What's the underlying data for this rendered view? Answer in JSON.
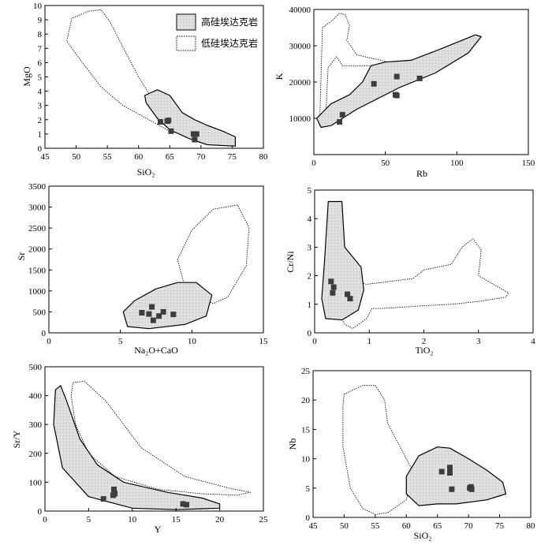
{
  "legend": {
    "high_si": {
      "label": "高硅埃达克岩"
    },
    "low_si": {
      "label": "低硅埃达克岩"
    }
  },
  "chart_data": [
    {
      "id": "mgo_sio2",
      "type": "scatter",
      "xlabel": "SiO₂",
      "ylabel": "MgO",
      "xlim": [
        45,
        80
      ],
      "ylim": [
        0,
        10
      ],
      "xticks": [
        45,
        50,
        55,
        60,
        65,
        70,
        75,
        80
      ],
      "yticks": [
        0,
        1,
        2,
        3,
        4,
        5,
        6,
        7,
        8,
        9,
        10
      ],
      "points": [
        [
          63.5,
          1.85
        ],
        [
          64.6,
          1.9
        ],
        [
          64.8,
          1.95
        ],
        [
          65.2,
          1.2
        ],
        [
          68.8,
          1.0
        ],
        [
          69.3,
          1.0
        ],
        [
          69.0,
          0.6
        ]
      ],
      "high_si_field": [
        [
          61,
          3.7
        ],
        [
          63,
          4.1
        ],
        [
          65,
          3.7
        ],
        [
          67,
          2.5
        ],
        [
          69,
          2.0
        ],
        [
          71,
          1.6
        ],
        [
          73.5,
          1.2
        ],
        [
          75.5,
          0.8
        ],
        [
          75.5,
          0.15
        ],
        [
          71,
          0.25
        ],
        [
          68,
          0.7
        ],
        [
          65,
          1.3
        ],
        [
          63,
          2.1
        ],
        [
          61.2,
          3.2
        ]
      ],
      "low_si_field": [
        [
          52,
          9.6
        ],
        [
          54,
          9.7
        ],
        [
          55.5,
          8.8
        ],
        [
          57,
          7.5
        ],
        [
          60,
          5.0
        ],
        [
          62,
          3.6
        ],
        [
          69,
          1.9
        ],
        [
          71.5,
          1.0
        ],
        [
          70.5,
          0.6
        ],
        [
          65,
          1.2
        ],
        [
          57.5,
          3.0
        ],
        [
          54,
          4.3
        ],
        [
          51,
          6.0
        ],
        [
          48.5,
          7.5
        ],
        [
          49.3,
          9.1
        ]
      ]
    },
    {
      "id": "k_rb",
      "type": "scatter",
      "xlabel": "Rb",
      "ylabel": "K",
      "xlim": [
        0,
        150
      ],
      "ylim": [
        0,
        40000
      ],
      "xticks": [
        0,
        50,
        100,
        150
      ],
      "yticks": [
        10000,
        20000,
        30000,
        40000
      ],
      "points": [
        [
          18,
          9000
        ],
        [
          20,
          11000
        ],
        [
          42,
          19500
        ],
        [
          57,
          16500
        ],
        [
          58,
          16300
        ],
        [
          58,
          21500
        ],
        [
          74,
          21000
        ]
      ],
      "high_si_field": [
        [
          2,
          10000
        ],
        [
          5,
          7500
        ],
        [
          12,
          8000
        ],
        [
          30,
          12500
        ],
        [
          60,
          18500
        ],
        [
          85,
          22500
        ],
        [
          108,
          28000
        ],
        [
          117,
          32500
        ],
        [
          113,
          33000
        ],
        [
          88,
          29000
        ],
        [
          68,
          26000
        ],
        [
          50,
          25500
        ],
        [
          40,
          24500
        ],
        [
          34,
          20000
        ],
        [
          25,
          16500
        ],
        [
          12,
          14000
        ]
      ],
      "low_si_field": [
        [
          4,
          8000
        ],
        [
          6,
          35000
        ],
        [
          13,
          37000
        ],
        [
          18,
          39000
        ],
        [
          22,
          38500
        ],
        [
          25,
          35500
        ],
        [
          23,
          31500
        ],
        [
          30,
          27500
        ],
        [
          52,
          25500
        ],
        [
          80,
          26500
        ],
        [
          46,
          24500
        ],
        [
          20,
          24500
        ],
        [
          16,
          27000
        ],
        [
          10,
          24000
        ],
        [
          8,
          8000
        ]
      ]
    },
    {
      "id": "sr_na2ocao",
      "type": "scatter",
      "xlabel": "Na₂O+CaO",
      "ylabel": "Sr",
      "xlim": [
        0,
        15
      ],
      "ylim": [
        0,
        3500
      ],
      "xticks": [
        0,
        5,
        10,
        15
      ],
      "yticks": [
        0,
        500,
        1000,
        1500,
        2000,
        2500,
        3000,
        3500
      ],
      "points": [
        [
          6.5,
          480
        ],
        [
          7.0,
          450
        ],
        [
          7.2,
          620
        ],
        [
          7.3,
          300
        ],
        [
          7.7,
          400
        ],
        [
          8.0,
          500
        ],
        [
          8.7,
          440
        ]
      ],
      "high_si_field": [
        [
          5.2,
          500
        ],
        [
          6.0,
          770
        ],
        [
          7.5,
          1050
        ],
        [
          9.0,
          1200
        ],
        [
          10.3,
          1200
        ],
        [
          11.4,
          900
        ],
        [
          11.0,
          400
        ],
        [
          9.5,
          200
        ],
        [
          7.0,
          100
        ],
        [
          5.5,
          150
        ]
      ],
      "low_si_field": [
        [
          9.0,
          1750
        ],
        [
          10.0,
          2450
        ],
        [
          11.5,
          2950
        ],
        [
          13.2,
          3050
        ],
        [
          14.0,
          2500
        ],
        [
          13.8,
          1600
        ],
        [
          12.5,
          850
        ],
        [
          11.5,
          700
        ],
        [
          10.8,
          800
        ],
        [
          10.5,
          1150
        ],
        [
          9.5,
          1100
        ]
      ]
    },
    {
      "id": "crni_tio2",
      "type": "scatter",
      "xlabel": "TiO₂",
      "ylabel": "Cr/Ni",
      "xlim": [
        0,
        4
      ],
      "ylim": [
        0,
        5
      ],
      "xticks": [
        0,
        1,
        2,
        3,
        4
      ],
      "yticks": [
        0,
        1,
        2,
        3,
        4,
        5
      ],
      "points": [
        [
          0.3,
          1.8
        ],
        [
          0.35,
          1.6
        ],
        [
          0.33,
          1.4
        ],
        [
          0.6,
          1.35
        ],
        [
          0.65,
          1.2
        ]
      ],
      "high_si_field": [
        [
          0.25,
          4.6
        ],
        [
          0.5,
          4.6
        ],
        [
          0.55,
          3.0
        ],
        [
          0.85,
          2.3
        ],
        [
          0.9,
          1.5
        ],
        [
          0.8,
          0.8
        ],
        [
          0.5,
          0.45
        ],
        [
          0.2,
          0.5
        ],
        [
          0.13,
          1.2
        ],
        [
          0.18,
          2.5
        ]
      ],
      "low_si_field": [
        [
          0.5,
          1.5
        ],
        [
          0.6,
          2.0
        ],
        [
          0.75,
          1.8
        ],
        [
          0.95,
          1.7
        ],
        [
          1.8,
          1.9
        ],
        [
          2.0,
          2.2
        ],
        [
          2.5,
          2.4
        ],
        [
          2.7,
          3.0
        ],
        [
          2.9,
          3.3
        ],
        [
          3.05,
          2.9
        ],
        [
          3.0,
          2.0
        ],
        [
          3.55,
          1.4
        ],
        [
          3.5,
          1.25
        ],
        [
          3.0,
          1.1
        ],
        [
          2.5,
          1.0
        ],
        [
          2.0,
          0.95
        ],
        [
          1.2,
          0.85
        ],
        [
          1.05,
          0.85
        ],
        [
          0.95,
          0.5
        ],
        [
          0.7,
          0.15
        ],
        [
          0.55,
          0.3
        ],
        [
          0.45,
          0.7
        ]
      ]
    },
    {
      "id": "sry_y",
      "type": "scatter",
      "xlabel": "Y",
      "ylabel": "Sr/Y",
      "xlim": [
        0,
        25
      ],
      "ylim": [
        0,
        500
      ],
      "xticks": [
        0,
        5,
        10,
        15,
        20,
        25
      ],
      "yticks": [
        0,
        100,
        200,
        300,
        400,
        500
      ],
      "points": [
        [
          6.7,
          42
        ],
        [
          7.8,
          55
        ],
        [
          7.9,
          75
        ],
        [
          8.0,
          60
        ],
        [
          15.8,
          25
        ],
        [
          16.2,
          22
        ]
      ],
      "high_si_field": [
        [
          1.2,
          420
        ],
        [
          1.8,
          435
        ],
        [
          2.5,
          380
        ],
        [
          4.0,
          250
        ],
        [
          6.0,
          160
        ],
        [
          9.0,
          100
        ],
        [
          14.0,
          65
        ],
        [
          18.0,
          45
        ],
        [
          20.0,
          25
        ],
        [
          20.0,
          10
        ],
        [
          15.0,
          5
        ],
        [
          10.0,
          10
        ],
        [
          5.0,
          50
        ],
        [
          2.0,
          150
        ],
        [
          1.0,
          300
        ]
      ],
      "low_si_field": [
        [
          3.2,
          445
        ],
        [
          4.5,
          450
        ],
        [
          7.0,
          380
        ],
        [
          11.0,
          220
        ],
        [
          16.0,
          120
        ],
        [
          21.0,
          80
        ],
        [
          23.5,
          65
        ],
        [
          22.0,
          55
        ],
        [
          18.0,
          60
        ],
        [
          13.0,
          75
        ],
        [
          8.0,
          120
        ],
        [
          5.0,
          200
        ],
        [
          3.5,
          300
        ],
        [
          3.0,
          400
        ]
      ]
    },
    {
      "id": "nb_sio2",
      "type": "scatter",
      "xlabel": "SiO₂",
      "ylabel": "Nb",
      "xlim": [
        45,
        80
      ],
      "ylim": [
        0,
        25
      ],
      "xticks": [
        45,
        50,
        55,
        60,
        65,
        70,
        75,
        80
      ],
      "yticks": [
        0,
        5,
        10,
        15,
        20,
        25
      ],
      "points": [
        [
          65.7,
          7.8
        ],
        [
          67.0,
          8.5
        ],
        [
          67.0,
          7.6
        ],
        [
          67.3,
          4.8
        ],
        [
          70.2,
          5.0
        ],
        [
          70.5,
          4.8
        ],
        [
          70.4,
          5.2
        ]
      ],
      "high_si_field": [
        [
          60,
          7.0
        ],
        [
          62,
          10.5
        ],
        [
          65,
          12.0
        ],
        [
          67,
          11.8
        ],
        [
          70,
          10.0
        ],
        [
          73,
          8.0
        ],
        [
          75.5,
          6.0
        ],
        [
          76,
          4.0
        ],
        [
          73,
          3.0
        ],
        [
          68,
          2.3
        ],
        [
          65,
          2.3
        ],
        [
          62,
          2.0
        ],
        [
          60,
          4.0
        ]
      ],
      "low_si_field": [
        [
          50,
          21.0
        ],
        [
          53,
          22.5
        ],
        [
          55,
          22.5
        ],
        [
          56.5,
          20.0
        ],
        [
          57,
          16.0
        ],
        [
          59,
          12.0
        ],
        [
          61,
          8.0
        ],
        [
          60,
          3.0
        ],
        [
          57,
          0.8
        ],
        [
          55,
          0.5
        ],
        [
          53,
          1.5
        ],
        [
          51,
          5.0
        ],
        [
          49.8,
          12.0
        ],
        [
          49.8,
          19.0
        ]
      ]
    }
  ]
}
